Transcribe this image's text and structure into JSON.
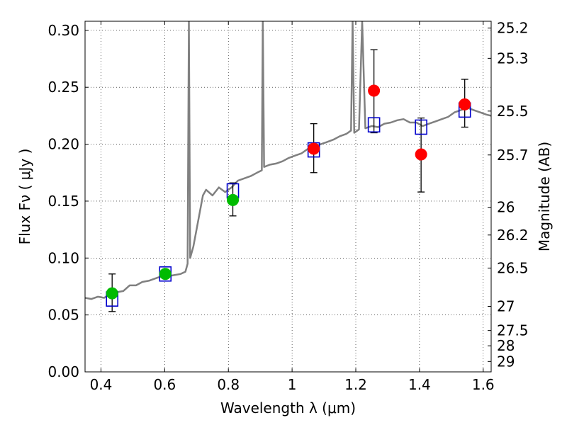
{
  "chart_data": {
    "type": "scatter",
    "title": "",
    "xlabel": "Wavelength  λ (μm)",
    "ylabel": "Flux  Fν  ( μJy )",
    "y2label": "Magnitude (AB)",
    "xlim": [
      0.35,
      1.625
    ],
    "ylim": [
      0.0,
      0.308
    ],
    "grid": true,
    "x_ticks": [
      {
        "v": 0.4,
        "label": "0.4"
      },
      {
        "v": 0.6,
        "label": "0.6"
      },
      {
        "v": 0.8,
        "label": "0.8"
      },
      {
        "v": 1.0,
        "label": "1"
      },
      {
        "v": 1.2,
        "label": "1.2"
      },
      {
        "v": 1.4,
        "label": "1.4"
      },
      {
        "v": 1.6,
        "label": "1.6"
      }
    ],
    "y_ticks": [
      {
        "v": 0.0,
        "label": "0.00"
      },
      {
        "v": 0.05,
        "label": "0.05"
      },
      {
        "v": 0.1,
        "label": "0.10"
      },
      {
        "v": 0.15,
        "label": "0.15"
      },
      {
        "v": 0.2,
        "label": "0.20"
      },
      {
        "v": 0.25,
        "label": "0.25"
      },
      {
        "v": 0.3,
        "label": "0.30"
      }
    ],
    "magnitude_ticks": [
      {
        "mag": 25.2,
        "label": "25.2"
      },
      {
        "mag": 25.3,
        "label": "25.3"
      },
      {
        "mag": 25.5,
        "label": "25.5"
      },
      {
        "mag": 25.7,
        "label": "25.7"
      },
      {
        "mag": 26.0,
        "label": "26"
      },
      {
        "mag": 26.2,
        "label": "26.2"
      },
      {
        "mag": 26.5,
        "label": "26.5"
      },
      {
        "mag": 27.0,
        "label": "27"
      },
      {
        "mag": 27.5,
        "label": "27.5"
      },
      {
        "mag": 28.0,
        "label": "28"
      },
      {
        "mag": 29.0,
        "label": "29"
      }
    ],
    "series": [
      {
        "kind": "spectrum",
        "color": "#808080",
        "points": [
          [
            0.35,
            0.065
          ],
          [
            0.37,
            0.064
          ],
          [
            0.39,
            0.066
          ],
          [
            0.41,
            0.065
          ],
          [
            0.43,
            0.069
          ],
          [
            0.45,
            0.07
          ],
          [
            0.47,
            0.071
          ],
          [
            0.49,
            0.076
          ],
          [
            0.51,
            0.076
          ],
          [
            0.53,
            0.079
          ],
          [
            0.55,
            0.08
          ],
          [
            0.57,
            0.082
          ],
          [
            0.59,
            0.084
          ],
          [
            0.61,
            0.084
          ],
          [
            0.63,
            0.085
          ],
          [
            0.65,
            0.086
          ],
          [
            0.665,
            0.088
          ],
          [
            0.672,
            0.095
          ],
          [
            0.676,
            0.308
          ],
          [
            0.68,
            0.1
          ],
          [
            0.69,
            0.11
          ],
          [
            0.7,
            0.125
          ],
          [
            0.71,
            0.14
          ],
          [
            0.72,
            0.155
          ],
          [
            0.73,
            0.16
          ],
          [
            0.75,
            0.155
          ],
          [
            0.77,
            0.162
          ],
          [
            0.79,
            0.158
          ],
          [
            0.81,
            0.162
          ],
          [
            0.83,
            0.168
          ],
          [
            0.85,
            0.17
          ],
          [
            0.87,
            0.172
          ],
          [
            0.89,
            0.175
          ],
          [
            0.905,
            0.177
          ],
          [
            0.908,
            0.308
          ],
          [
            0.912,
            0.18
          ],
          [
            0.93,
            0.182
          ],
          [
            0.95,
            0.183
          ],
          [
            0.97,
            0.185
          ],
          [
            0.99,
            0.188
          ],
          [
            1.01,
            0.19
          ],
          [
            1.03,
            0.192
          ],
          [
            1.05,
            0.196
          ],
          [
            1.07,
            0.198
          ],
          [
            1.09,
            0.2
          ],
          [
            1.11,
            0.202
          ],
          [
            1.13,
            0.204
          ],
          [
            1.15,
            0.207
          ],
          [
            1.17,
            0.209
          ],
          [
            1.185,
            0.212
          ],
          [
            1.19,
            0.308
          ],
          [
            1.195,
            0.21
          ],
          [
            1.21,
            0.213
          ],
          [
            1.22,
            0.308
          ],
          [
            1.23,
            0.214
          ],
          [
            1.25,
            0.216
          ],
          [
            1.27,
            0.215
          ],
          [
            1.29,
            0.218
          ],
          [
            1.31,
            0.219
          ],
          [
            1.33,
            0.221
          ],
          [
            1.35,
            0.222
          ],
          [
            1.37,
            0.219
          ],
          [
            1.39,
            0.219
          ],
          [
            1.41,
            0.216
          ],
          [
            1.43,
            0.218
          ],
          [
            1.45,
            0.22
          ],
          [
            1.47,
            0.222
          ],
          [
            1.49,
            0.224
          ],
          [
            1.51,
            0.228
          ],
          [
            1.53,
            0.23
          ],
          [
            1.55,
            0.232
          ],
          [
            1.57,
            0.23
          ],
          [
            1.59,
            0.228
          ],
          [
            1.61,
            0.226
          ],
          [
            1.625,
            0.225
          ]
        ]
      },
      {
        "kind": "model-photometry",
        "marker": "open-square",
        "color": "#0000cc",
        "points": [
          [
            0.435,
            0.064
          ],
          [
            0.602,
            0.086
          ],
          [
            0.814,
            0.159
          ],
          [
            1.068,
            0.195
          ],
          [
            1.257,
            0.217
          ],
          [
            1.405,
            0.215
          ],
          [
            1.542,
            0.23
          ]
        ]
      },
      {
        "kind": "optical-photometry",
        "marker": "filled-circle",
        "color": "#00bb00",
        "points": [
          {
            "x": 0.435,
            "y": 0.069,
            "yerr": [
              0.053,
              0.086
            ]
          },
          {
            "x": 0.602,
            "y": 0.086
          },
          {
            "x": 0.814,
            "y": 0.151,
            "yerr": [
              0.137,
              0.166
            ]
          }
        ]
      },
      {
        "kind": "nir-photometry",
        "marker": "filled-circle",
        "color": "#ff0000",
        "points": [
          {
            "x": 1.068,
            "y": 0.196,
            "yerr": [
              0.175,
              0.218
            ]
          },
          {
            "x": 1.257,
            "y": 0.247,
            "yerr": [
              0.21,
              0.283
            ]
          },
          {
            "x": 1.405,
            "y": 0.191,
            "yerr": [
              0.158,
              0.223
            ]
          },
          {
            "x": 1.542,
            "y": 0.235,
            "yerr": [
              0.215,
              0.257
            ]
          }
        ]
      }
    ]
  }
}
